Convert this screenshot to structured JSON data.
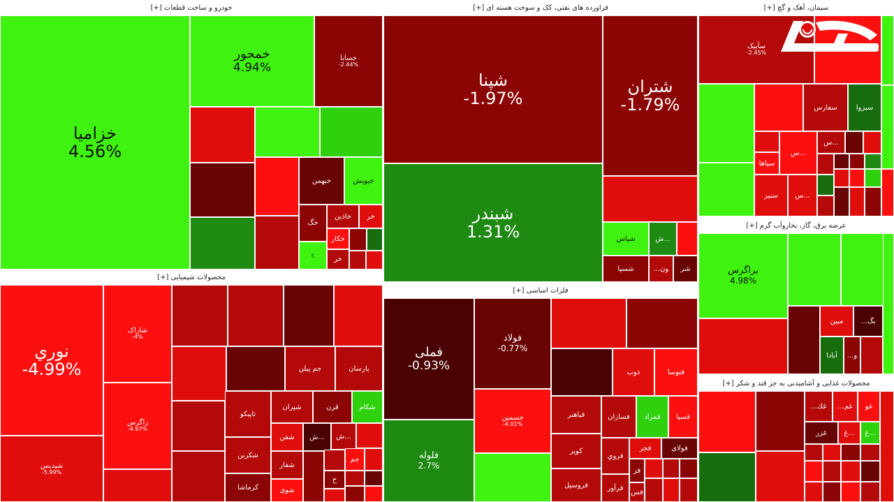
{
  "sectors": {
    "auto": {
      "title": "خودرو و ساخت قطعات [+]",
      "tiles": [
        {
          "name": "خزامیا",
          "pct": "4.56%"
        },
        {
          "name": "خمحور",
          "pct": "4.94%"
        },
        {
          "name": "خسابا",
          "pct": "-2.44%"
        },
        {
          "name": "خبهمن",
          "pct": ""
        },
        {
          "name": "خبویش",
          "pct": ""
        },
        {
          "name": "خاذین",
          "pct": ""
        },
        {
          "name": "خکار",
          "pct": ""
        },
        {
          "name": "خگ",
          "pct": ""
        },
        {
          "name": "خر",
          "pct": ""
        },
        {
          "name": "خ",
          "pct": ""
        },
        {
          "name": "خر",
          "pct": ""
        }
      ]
    },
    "oil": {
      "title": "فراورده های نفتی، کک و سوخت هسته ای [+]",
      "tiles": [
        {
          "name": "شپنا",
          "pct": "-1.97%"
        },
        {
          "name": "شتران",
          "pct": "-1.79%"
        },
        {
          "name": "شبندر",
          "pct": "1.31%"
        },
        {
          "name": "شپاس",
          "pct": ""
        },
        {
          "name": "ش...",
          "pct": ""
        },
        {
          "name": "شسپا",
          "pct": ""
        },
        {
          "name": "...ون",
          "pct": ""
        },
        {
          "name": "شر",
          "pct": ""
        }
      ]
    },
    "cement": {
      "title": "سیمان، آهک و گچ [+]",
      "tiles": [
        {
          "name": "سآبیک",
          "pct": "-2.45%"
        },
        {
          "name": "سفارس",
          "pct": ""
        },
        {
          "name": "سبزوا",
          "pct": ""
        },
        {
          "name": "سپاها",
          "pct": ""
        },
        {
          "name": "س...",
          "pct": ""
        },
        {
          "name": "سنیر",
          "pct": ""
        },
        {
          "name": "س...",
          "pct": ""
        },
        {
          "name": "س...",
          "pct": ""
        }
      ]
    },
    "chem": {
      "title": "محصولات شیمیایی [+]",
      "tiles": [
        {
          "name": "نوري",
          "pct": "-4.99%"
        },
        {
          "name": "شپدیس",
          "pct": "-5.99%"
        },
        {
          "name": "شاراک",
          "pct": "-4%"
        },
        {
          "name": "زاگرس",
          "pct": "-4.97%"
        },
        {
          "name": "جم پیلن",
          "pct": ""
        },
        {
          "name": "پارسان",
          "pct": ""
        },
        {
          "name": "تاپیکو",
          "pct": ""
        },
        {
          "name": "شیران",
          "pct": ""
        },
        {
          "name": "قرن",
          "pct": ""
        },
        {
          "name": "شکام",
          "pct": ""
        },
        {
          "name": "شکربن",
          "pct": ""
        },
        {
          "name": "کرماشا",
          "pct": ""
        },
        {
          "name": "شفن",
          "pct": ""
        },
        {
          "name": "شفار",
          "pct": ""
        },
        {
          "name": "شوی",
          "pct": ""
        },
        {
          "name": "ش...",
          "pct": ""
        },
        {
          "name": "ش...",
          "pct": ""
        },
        {
          "name": "جم",
          "pct": ""
        },
        {
          "name": "خ",
          "pct": ""
        }
      ]
    },
    "metals": {
      "title": "فلزات اساسی [+]",
      "tiles": [
        {
          "name": "فملی",
          "pct": "-0.93%"
        },
        {
          "name": "فولاد",
          "pct": "-0.77%"
        },
        {
          "name": "فلوله",
          "pct": "2.7%"
        },
        {
          "name": "فتوسا",
          "pct": ""
        },
        {
          "name": "ذوب",
          "pct": ""
        },
        {
          "name": "فباهنر",
          "pct": ""
        },
        {
          "name": "فسازان",
          "pct": ""
        },
        {
          "name": "فمراد",
          "pct": ""
        },
        {
          "name": "فسپا",
          "pct": ""
        },
        {
          "name": "کویر",
          "pct": ""
        },
        {
          "name": "فروي",
          "pct": ""
        },
        {
          "name": "فجر",
          "pct": ""
        },
        {
          "name": "فولای",
          "pct": ""
        },
        {
          "name": "فروسیل",
          "pct": ""
        },
        {
          "name": "فرآور",
          "pct": ""
        },
        {
          "name": "فز",
          "pct": ""
        },
        {
          "name": "فس",
          "pct": ""
        },
        {
          "name": "جسمین",
          "pct": "-4.01%"
        }
      ]
    },
    "power": {
      "title": "عرضه برق، گاز، بخاروآب گرم [+]",
      "tiles": [
        {
          "name": "براگرس",
          "pct": "4.98%"
        },
        {
          "name": "مبین",
          "pct": ""
        },
        {
          "name": "...بگ",
          "pct": ""
        },
        {
          "name": "آبادا",
          "pct": ""
        },
        {
          "name": "...و",
          "pct": ""
        }
      ]
    },
    "food": {
      "title": "محصولات غذایی و آشامیدنی به جز قند و شکر [+]",
      "tiles": [
        {
          "name": "...غك",
          "pct": ""
        },
        {
          "name": "...غم",
          "pct": ""
        },
        {
          "name": "غو",
          "pct": ""
        },
        {
          "name": "غزر",
          "pct": ""
        },
        {
          "name": "غ...",
          "pct": ""
        },
        {
          "name": "غ...",
          "pct": ""
        }
      ]
    }
  },
  "logo": {
    "name": "rokna-logo"
  }
}
